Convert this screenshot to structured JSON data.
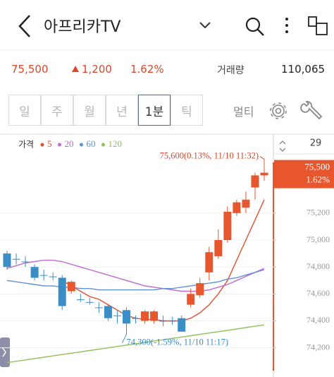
{
  "header": {
    "title": "아프리카TV"
  },
  "quote": {
    "price": "75,500",
    "change": "1,200",
    "change_rate": "1.62%",
    "volume_label": "거래량",
    "volume": "110,065"
  },
  "tabs": {
    "items": [
      "일",
      "주",
      "월",
      "년",
      "1분",
      "틱"
    ],
    "selected": 4,
    "multi": "멀티"
  },
  "chart_data": {
    "type": "candlestick",
    "legend_title": "가격",
    "visible_count": 29,
    "up_color": "#e8562e",
    "down_color": "#3a8dc5",
    "open": [
      74900,
      74860,
      74840,
      74800,
      74740,
      74730,
      74720,
      74620,
      74560,
      74540,
      74500,
      74510,
      74440,
      74480,
      74420,
      74400,
      74400,
      74400,
      74400,
      74420,
      74520,
      74590,
      74760,
      74880,
      75000,
      75200,
      75240,
      75390,
      75480
    ],
    "high": [
      74920,
      74900,
      74880,
      74820,
      74780,
      74760,
      74740,
      74700,
      74600,
      74570,
      74540,
      74520,
      74480,
      74500,
      74440,
      74480,
      74480,
      74440,
      74430,
      74440,
      74640,
      74720,
      74950,
      75080,
      75250,
      75300,
      75360,
      75500,
      75600
    ],
    "low": [
      74780,
      74820,
      74800,
      74700,
      74700,
      74700,
      74480,
      74600,
      74540,
      74520,
      74460,
      74400,
      74380,
      74300,
      74380,
      74380,
      74380,
      74360,
      74370,
      74320,
      74500,
      74570,
      74700,
      74860,
      74980,
      75180,
      75200,
      75300,
      75440
    ],
    "close": [
      74800,
      74860,
      74840,
      74720,
      74740,
      74730,
      74510,
      74690,
      74560,
      74540,
      74500,
      74420,
      74440,
      74380,
      74420,
      74470,
      74470,
      74400,
      74400,
      74320,
      74600,
      74680,
      74910,
      75000,
      75210,
      75280,
      75300,
      75480,
      75500
    ],
    "series": [
      {
        "name": "5",
        "color": "#e0502e",
        "values": [
          null,
          null,
          null,
          null,
          null,
          null,
          74700,
          74660,
          74620,
          74580,
          74560,
          74520,
          74480,
          74440,
          74420,
          74410,
          74410,
          74400,
          74400,
          74400,
          74420,
          74460,
          74520,
          74600,
          74700,
          74850,
          75000,
          75150,
          75300
        ]
      },
      {
        "name": "20",
        "color": "#c169d0",
        "values": [
          74790,
          74810,
          74830,
          74840,
          74850,
          74850,
          74840,
          74820,
          74800,
          74780,
          74760,
          74740,
          74720,
          74700,
          74680,
          74660,
          74650,
          74640,
          74630,
          74620,
          74620,
          74620,
          74630,
          74650,
          74670,
          74700,
          74730,
          74760,
          74790
        ]
      },
      {
        "name": "60",
        "color": "#5f8fd6",
        "values": [
          74700,
          74690,
          74680,
          74670,
          74660,
          74660,
          74650,
          74650,
          74640,
          74640,
          74630,
          74630,
          74630,
          74630,
          74630,
          74630,
          74630,
          74640,
          74640,
          74650,
          74660,
          74670,
          74680,
          74690,
          74710,
          74720,
          74740,
          74760,
          74780
        ]
      },
      {
        "name": "120",
        "color": "#8fc05a",
        "values": [
          74090,
          74100,
          74110,
          74120,
          74130,
          74140,
          74150,
          74160,
          74170,
          74180,
          74190,
          74200,
          74210,
          74220,
          74230,
          74240,
          74250,
          74260,
          74270,
          74280,
          74290,
          74300,
          74310,
          74320,
          74330,
          74340,
          74350,
          74360,
          74370
        ]
      }
    ],
    "ylim": [
      74020,
      75760
    ],
    "yticks": [
      {
        "value": 74200,
        "label": "74,200"
      },
      {
        "value": 74400,
        "label": "74,400"
      },
      {
        "value": 74600,
        "label": "74,600"
      },
      {
        "value": 74800,
        "label": "74,800"
      },
      {
        "value": 75000,
        "label": "75,000"
      },
      {
        "value": 75200,
        "label": "75,200"
      }
    ],
    "grid": true,
    "current": {
      "value": 75500,
      "label": "75,500",
      "rate_label": "1.62%",
      "color": "#e8562e"
    },
    "annotations": [
      {
        "text": "75,600(0.13%, 11/10 11:32)",
        "value": 75600,
        "index": 28,
        "color": "#d8452b"
      },
      {
        "text": "74,300(-1.59%, 11/10 11:17)",
        "value": 74300,
        "index": 13,
        "color": "#3a8dc5"
      }
    ]
  }
}
